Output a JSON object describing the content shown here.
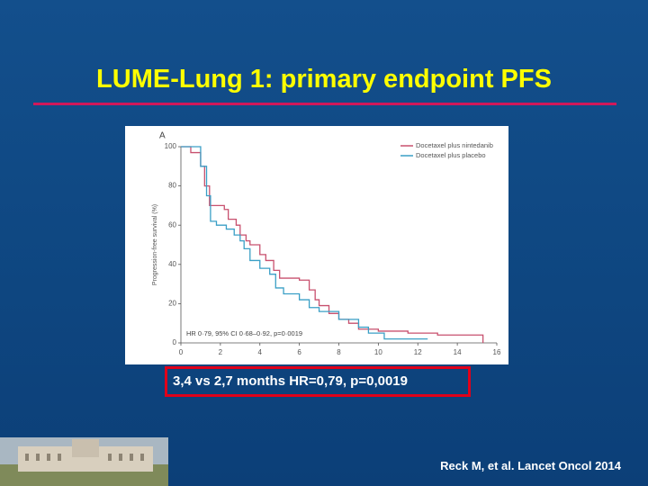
{
  "title": "LUME-Lung 1: primary endpoint PFS",
  "highlight": "3,4 vs 2,7 months HR=0,79, p=0,0019",
  "citation": "Reck M, et al. Lancet Oncol 2014",
  "chart_data": {
    "type": "line",
    "step": true,
    "panel": "A",
    "y_label": "Progression-free survival (%)",
    "annotation": "HR 0·79, 95% CI 0·68–0·92, p=0·0019",
    "xlim": [
      0,
      16
    ],
    "xticks": [
      0,
      2,
      4,
      6,
      8,
      10,
      12,
      14,
      16
    ],
    "ylim": [
      0,
      100
    ],
    "yticks": [
      0,
      20,
      40,
      60,
      80,
      100
    ],
    "legend": "top-right",
    "series": [
      {
        "name": "Docetaxel plus nintedanib",
        "color": "#c8506e",
        "x": [
          0,
          0.5,
          1,
          1.2,
          1.45,
          2,
          2.2,
          2.4,
          2.8,
          3,
          3.3,
          3.5,
          4,
          4.3,
          4.7,
          5,
          6,
          6.5,
          6.8,
          7,
          7.5,
          8,
          8.5,
          9,
          10,
          11.5,
          13,
          15.3
        ],
        "values": [
          100,
          97,
          90,
          80,
          70,
          70,
          68,
          63,
          60,
          55,
          52,
          50,
          45,
          42,
          37,
          33,
          32,
          27,
          22,
          19,
          15,
          12,
          10,
          7,
          6,
          5,
          4,
          0
        ]
      },
      {
        "name": "Docetaxel plus placebo",
        "color": "#3a9fc6",
        "x": [
          0,
          1,
          1.3,
          1.5,
          1.8,
          2.3,
          2.7,
          3,
          3.2,
          3.5,
          4,
          4.5,
          4.8,
          5.2,
          6,
          6.5,
          7,
          8,
          9,
          9.5,
          10.3,
          12.5
        ],
        "values": [
          100,
          90,
          75,
          62,
          60,
          58,
          55,
          52,
          48,
          42,
          38,
          35,
          28,
          25,
          22,
          18,
          16,
          12,
          8,
          5,
          2,
          2
        ]
      }
    ]
  }
}
